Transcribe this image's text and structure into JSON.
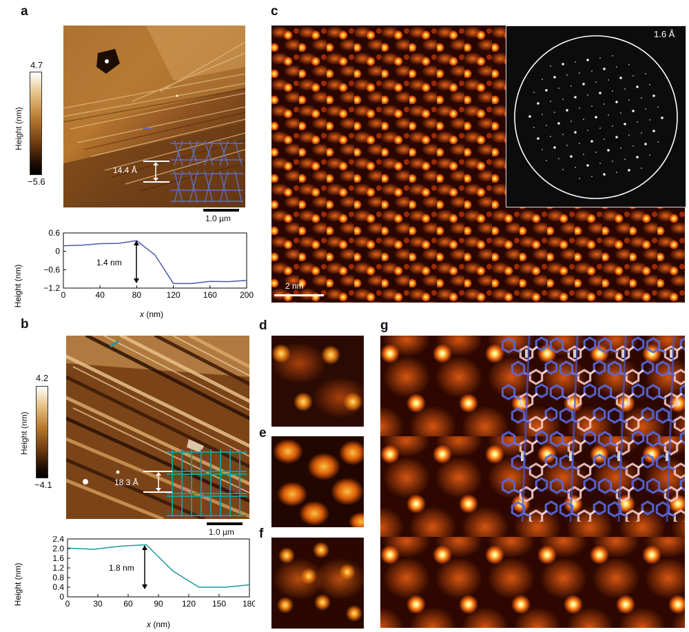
{
  "panels": {
    "a": {
      "label": "a",
      "colorbar": {
        "max": "4.7",
        "min": "−5.6",
        "label": "Height (nm)"
      },
      "step_label": "14.4 Å",
      "scalebar": "1.0 µm",
      "profile": {
        "ylabel": "Height (nm)",
        "xlabel_var": "x",
        "xlabel_unit": " (nm)",
        "annotation": "1.4 nm",
        "xticks": [
          "0",
          "40",
          "80",
          "120",
          "160",
          "200"
        ],
        "yticks": [
          "0.6",
          "0",
          "−0.6",
          "−1.2"
        ]
      }
    },
    "b": {
      "label": "b",
      "colorbar": {
        "max": "4.2",
        "min": "−4.1",
        "label": "Height (nm)"
      },
      "step_label": "18.3 Å",
      "scalebar": "1.0 µm",
      "profile": {
        "ylabel": "Height (nm)",
        "xlabel_var": "x",
        "xlabel_unit": " (nm)",
        "annotation": "1.8 nm",
        "xticks": [
          "0",
          "30",
          "60",
          "90",
          "120",
          "150",
          "180"
        ],
        "yticks": [
          "2.4",
          "2.0",
          "1.6",
          "1.2",
          "0.8",
          "0.4",
          "0"
        ]
      }
    },
    "c": {
      "label": "c",
      "fft_label": "1.6 Å",
      "scalebar": "2 nm"
    },
    "d": {
      "label": "d"
    },
    "e": {
      "label": "e"
    },
    "f": {
      "label": "f"
    },
    "g": {
      "label": "g"
    }
  },
  "chart_data": [
    {
      "type": "line",
      "ylabel": "Height (nm)",
      "xlabel": "x (nm)",
      "xlim": [
        0,
        200
      ],
      "ylim": [
        -1.2,
        0.6
      ],
      "x": [
        0,
        20,
        40,
        60,
        80,
        100,
        120,
        140,
        160,
        180,
        200
      ],
      "y": [
        0.18,
        0.2,
        0.25,
        0.26,
        0.35,
        -0.12,
        -1.05,
        -1.05,
        -0.98,
        -0.99,
        -0.95
      ],
      "color": "#4a5aa8"
    },
    {
      "type": "line",
      "ylabel": "Height (nm)",
      "xlabel": "x (nm)",
      "xlim": [
        0,
        180
      ],
      "ylim": [
        0,
        2.4
      ],
      "x": [
        0,
        26,
        52,
        78,
        104,
        130,
        156,
        180
      ],
      "y": [
        2.02,
        1.97,
        2.1,
        2.16,
        1.08,
        0.4,
        0.4,
        0.5
      ],
      "color": "#1a9a9a"
    }
  ]
}
